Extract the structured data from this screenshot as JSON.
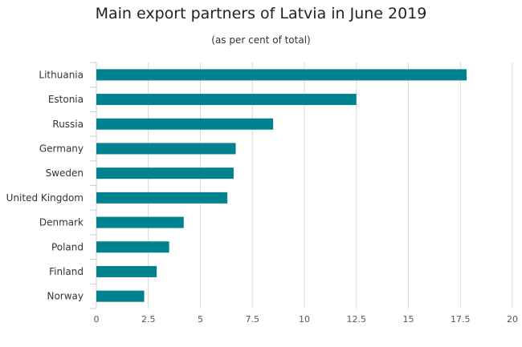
{
  "chart_data": {
    "type": "bar",
    "orientation": "horizontal",
    "title": "Main export partners of Latvia in June 2019",
    "subtitle": "(as per cent of total)",
    "xlabel": "",
    "ylabel": "",
    "categories": [
      "Lithuania",
      "Estonia",
      "Russia",
      "Germany",
      "Sweden",
      "United Kingdom",
      "Denmark",
      "Poland",
      "Finland",
      "Norway"
    ],
    "values": [
      17.8,
      12.5,
      8.5,
      6.7,
      6.6,
      6.3,
      4.2,
      3.5,
      2.9,
      2.3
    ],
    "xlim": [
      0,
      20
    ],
    "xticks": [
      "0",
      "2.5",
      "5",
      "7.5",
      "10",
      "12.5",
      "15",
      "17.5",
      "20"
    ],
    "grid": "vertical",
    "bar_color": "#00838f",
    "legend": "none"
  }
}
